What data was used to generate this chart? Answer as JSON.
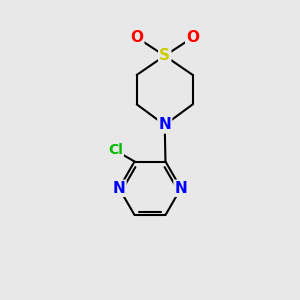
{
  "background_color": "#e8e8e8",
  "bond_color": "#000000",
  "bond_width": 1.5,
  "atom_colors": {
    "S": "#cccc00",
    "O": "#ff0000",
    "N": "#0000ff",
    "Cl": "#00bb00",
    "C": "#000000"
  }
}
